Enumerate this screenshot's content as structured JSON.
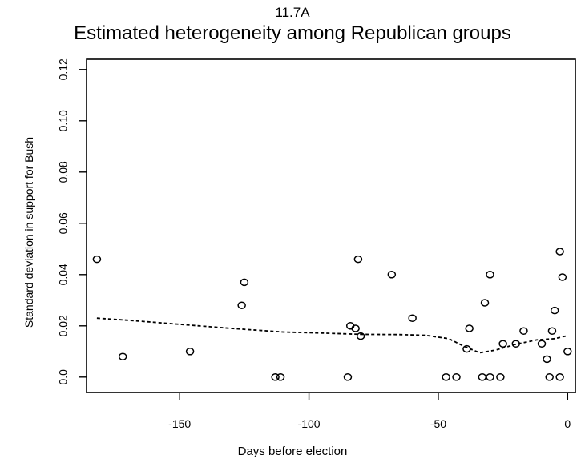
{
  "figure_label": "11.7A",
  "chart_data": {
    "type": "scatter",
    "title": "Estimated heterogeneity among Republican groups",
    "xlabel": "Days before election",
    "ylabel": "Standard deviation in support for Bush",
    "xlim": [
      -186,
      3
    ],
    "ylim": [
      -0.006,
      0.124
    ],
    "xticks": [
      -150,
      -100,
      -50,
      0
    ],
    "xtick_labels": [
      "-150",
      "-100",
      "-50",
      "0"
    ],
    "yticks": [
      0.0,
      0.02,
      0.04,
      0.06,
      0.08,
      0.1,
      0.12
    ],
    "ytick_labels": [
      "0.0",
      "0.02",
      "0.04",
      "0.06",
      "0.08",
      "0.10",
      "0.12"
    ],
    "grid": false,
    "points": [
      {
        "x": -182,
        "y": 0.046
      },
      {
        "x": -172,
        "y": 0.008
      },
      {
        "x": -146,
        "y": 0.01
      },
      {
        "x": -126,
        "y": 0.028
      },
      {
        "x": -125,
        "y": 0.037
      },
      {
        "x": -113,
        "y": 0.0
      },
      {
        "x": -111,
        "y": 0.0
      },
      {
        "x": -85,
        "y": 0.0
      },
      {
        "x": -84,
        "y": 0.02
      },
      {
        "x": -82,
        "y": 0.019
      },
      {
        "x": -81,
        "y": 0.046
      },
      {
        "x": -80,
        "y": 0.016
      },
      {
        "x": -68,
        "y": 0.04
      },
      {
        "x": -60,
        "y": 0.023
      },
      {
        "x": -47,
        "y": 0.0
      },
      {
        "x": -43,
        "y": 0.0
      },
      {
        "x": -39,
        "y": 0.011
      },
      {
        "x": -38,
        "y": 0.019
      },
      {
        "x": -33,
        "y": 0.0
      },
      {
        "x": -32,
        "y": 0.029
      },
      {
        "x": -30,
        "y": 0.0
      },
      {
        "x": -30,
        "y": 0.04
      },
      {
        "x": -26,
        "y": 0.0
      },
      {
        "x": -25,
        "y": 0.013
      },
      {
        "x": -20,
        "y": 0.013
      },
      {
        "x": -17,
        "y": 0.018
      },
      {
        "x": -10,
        "y": 0.013
      },
      {
        "x": -8,
        "y": 0.007
      },
      {
        "x": -7,
        "y": 0.0
      },
      {
        "x": -6,
        "y": 0.018
      },
      {
        "x": -5,
        "y": 0.026
      },
      {
        "x": -3,
        "y": 0.0
      },
      {
        "x": -3,
        "y": 0.049
      },
      {
        "x": -2,
        "y": 0.039
      },
      {
        "x": 0,
        "y": 0.01
      }
    ],
    "smooth_curve": [
      {
        "x": -182,
        "y": 0.023
      },
      {
        "x": -170,
        "y": 0.0222
      },
      {
        "x": -150,
        "y": 0.0206
      },
      {
        "x": -130,
        "y": 0.019
      },
      {
        "x": -110,
        "y": 0.0176
      },
      {
        "x": -95,
        "y": 0.0172
      },
      {
        "x": -80,
        "y": 0.0167
      },
      {
        "x": -65,
        "y": 0.0166
      },
      {
        "x": -55,
        "y": 0.0163
      },
      {
        "x": -46,
        "y": 0.015
      },
      {
        "x": -40,
        "y": 0.012
      },
      {
        "x": -34,
        "y": 0.0095
      },
      {
        "x": -28,
        "y": 0.0105
      },
      {
        "x": -20,
        "y": 0.0128
      },
      {
        "x": -12,
        "y": 0.0145
      },
      {
        "x": -5,
        "y": 0.015
      },
      {
        "x": 0,
        "y": 0.0162
      }
    ]
  }
}
